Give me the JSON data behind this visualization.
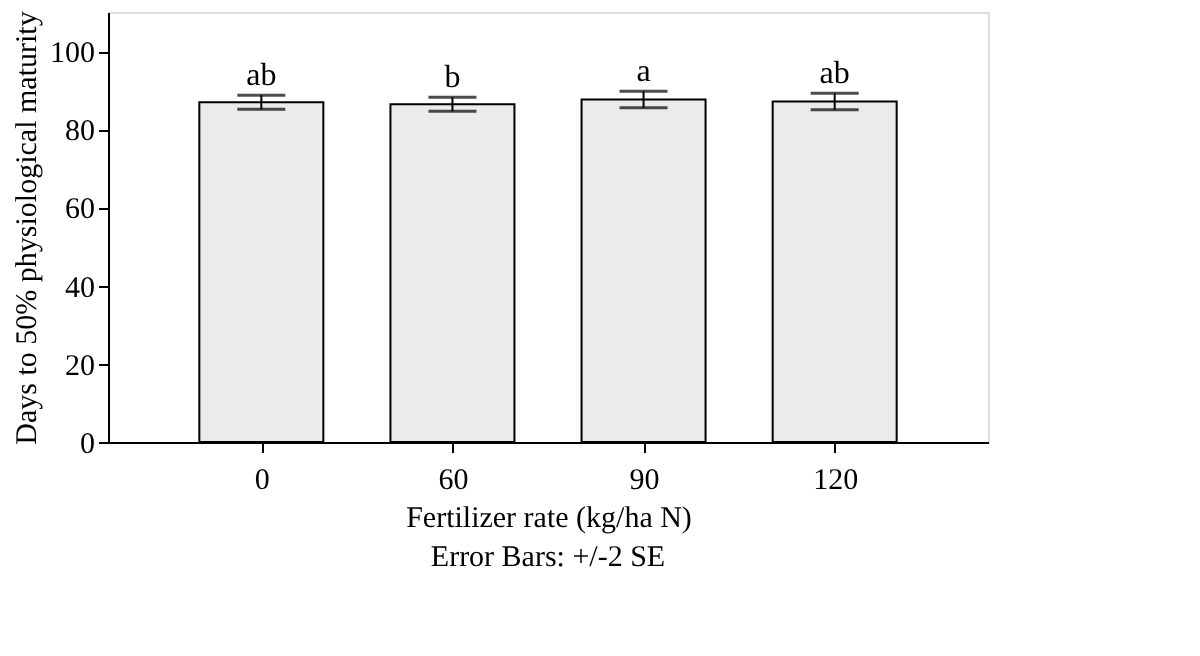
{
  "chart_data": {
    "type": "bar",
    "xlabel": "Fertilizer rate (kg/ha N)",
    "ylabel": "Days to 50% physiological maturity",
    "categories": [
      "0",
      "60",
      "90",
      "120"
    ],
    "values": [
      86.9,
      86.4,
      87.6,
      87.1
    ],
    "errors": [
      1.8,
      1.8,
      2.1,
      2.1
    ],
    "color": "#ebebeb",
    "ylim": [
      0,
      110
    ],
    "yticks": [
      0,
      20,
      40,
      60,
      80,
      100
    ],
    "grid": false,
    "annotations": [
      {
        "text": "ab",
        "x": "0",
        "y": 88.7
      },
      {
        "text": "b",
        "x": "60",
        "y": 88.2
      },
      {
        "text": "a",
        "x": "90",
        "y": 89.7
      },
      {
        "text": "ab",
        "x": "120",
        "y": 89.2
      },
      "Error Bars: +/-2 SE"
    ]
  }
}
